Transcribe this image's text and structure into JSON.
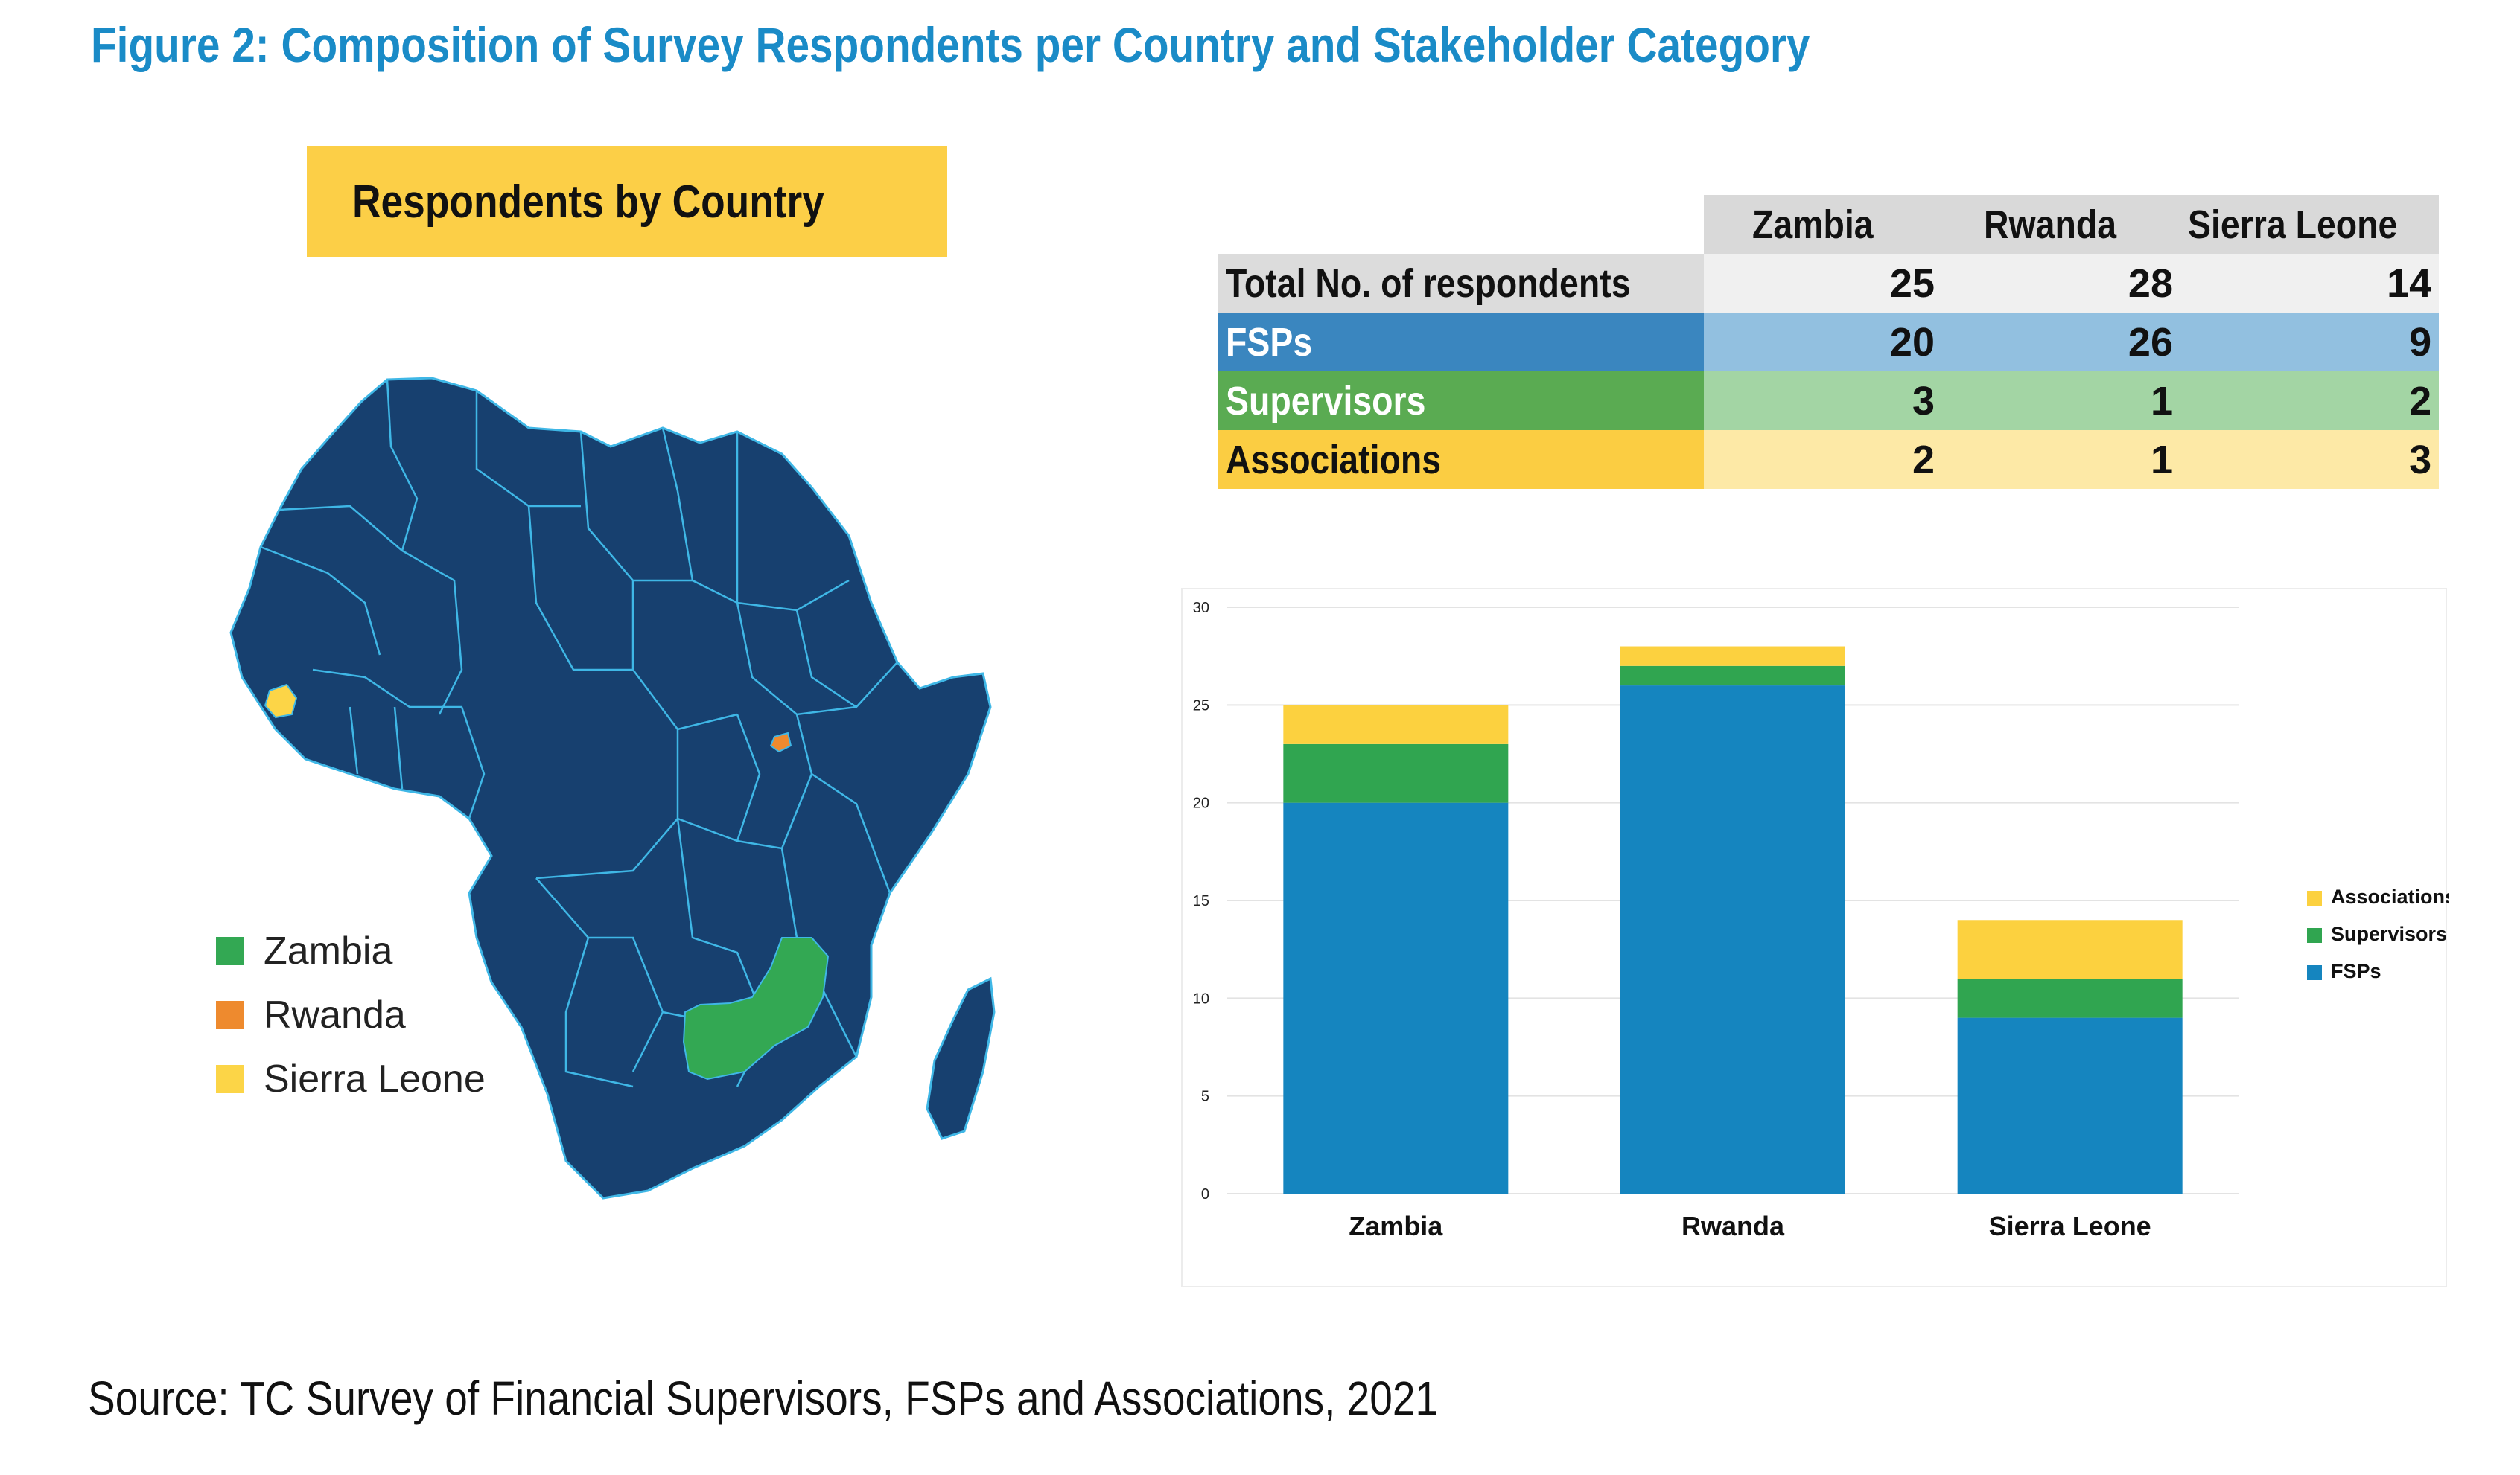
{
  "figure_title": "Figure 2: Composition of Survey Respondents per Country and Stakeholder Category",
  "map": {
    "banner_title": "Respondents by Country",
    "legend": [
      {
        "label": "Zambia",
        "color": "#33a853"
      },
      {
        "label": "Rwanda",
        "color": "#ee8a2e"
      },
      {
        "label": "Sierra Leone",
        "color": "#fcd547"
      }
    ],
    "land_color": "#17406f",
    "border_color": "#3fb7e6"
  },
  "table": {
    "headers": [
      "",
      "Zambia",
      "Rwanda",
      "Sierra Leone"
    ],
    "rows": [
      {
        "label": "Total No. of respondents",
        "values": [
          "25",
          "28",
          "14"
        ],
        "label_bg": "#dcdcdc",
        "label_color": "#111111",
        "cell_bg": "#f0f0f0"
      },
      {
        "label": "FSPs",
        "values": [
          "20",
          "26",
          "9"
        ],
        "label_bg": "#3a86bf",
        "label_color": "#ffffff",
        "cell_bg": "#92c0e0"
      },
      {
        "label": "Supervisors",
        "values": [
          "3",
          "1",
          "2"
        ],
        "label_bg": "#5aab52",
        "label_color": "#ffffff",
        "cell_bg": "#a3d5a4"
      },
      {
        "label": "Associations",
        "values": [
          "2",
          "1",
          "3"
        ],
        "label_bg": "#fbcd42",
        "label_color": "#111111",
        "cell_bg": "#fde9a6"
      }
    ]
  },
  "chart_data": {
    "type": "bar",
    "stacked": true,
    "categories": [
      "Zambia",
      "Rwanda",
      "Sierra Leone"
    ],
    "series": [
      {
        "name": "FSPs",
        "values": [
          20,
          26,
          9
        ],
        "color": "#1585bf"
      },
      {
        "name": "Supervisors",
        "values": [
          3,
          1,
          2
        ],
        "color": "#30a550"
      },
      {
        "name": "Associations",
        "values": [
          2,
          1,
          3
        ],
        "color": "#fcd13f"
      }
    ],
    "ylim": [
      0,
      30
    ],
    "yticks": [
      "0",
      "5",
      "10",
      "15",
      "20",
      "25",
      "30"
    ],
    "grid": true,
    "legend_position": "right",
    "legend_order": [
      "Associations",
      "Supervisors",
      "FSPs"
    ]
  },
  "source": "Source: TC Survey of Financial Supervisors, FSPs and Associations, 2021"
}
